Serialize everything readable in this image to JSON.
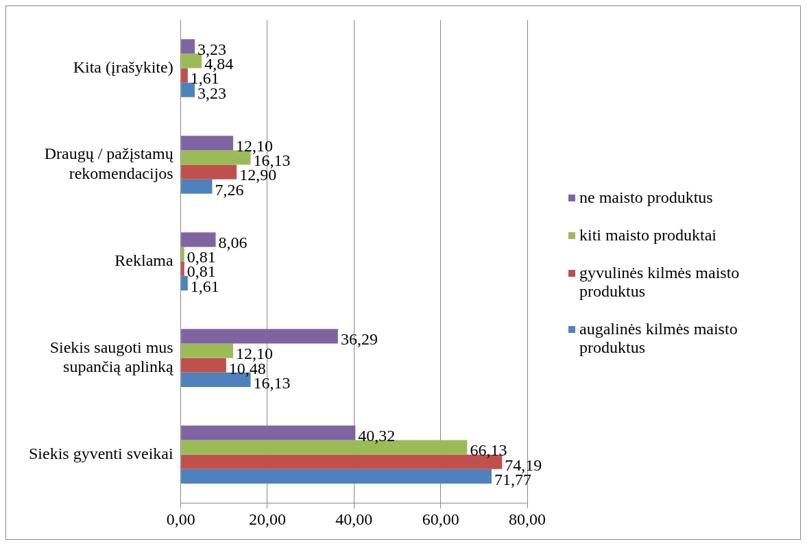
{
  "chart_data": {
    "type": "bar",
    "orientation": "horizontal",
    "categories": [
      "Kita (įrašykite)",
      "Draugų / pažįstamų rekomendacijos",
      "Reklama",
      "Siekis saugoti mus supančią aplinką",
      "Siekis gyventi sveikai"
    ],
    "series": [
      {
        "name": "ne maisto produktus",
        "color": "#8064a2",
        "values": [
          3.23,
          12.1,
          8.06,
          36.29,
          40.32
        ],
        "value_labels": [
          "3,23",
          "12,10",
          "8,06",
          "36,29",
          "40,32"
        ]
      },
      {
        "name": "kiti maisto produktai",
        "color": "#9bbb59",
        "values": [
          4.84,
          16.13,
          0.81,
          12.1,
          66.13
        ],
        "value_labels": [
          "4,84",
          "16,13",
          "0,81",
          "12,10",
          "66,13"
        ]
      },
      {
        "name": "gyvulinės kilmės maisto produktus",
        "color": "#c0504d",
        "values": [
          1.61,
          12.9,
          0.81,
          10.48,
          74.19
        ],
        "value_labels": [
          "1,61",
          "12,90",
          "0,81",
          "10,48",
          "74,19"
        ]
      },
      {
        "name": "augalinės kilmės maisto produktus",
        "color": "#4f81bd",
        "values": [
          3.23,
          7.26,
          1.61,
          16.13,
          71.77
        ],
        "value_labels": [
          "3,23",
          "7,26",
          "1,61",
          "16,13",
          "71,77"
        ]
      }
    ],
    "xlim": [
      0,
      80
    ],
    "xticks": [
      {
        "value": 0,
        "label": "0,00"
      },
      {
        "value": 20,
        "label": "20,00"
      },
      {
        "value": 40,
        "label": "40,00"
      },
      {
        "value": 60,
        "label": "60,00"
      },
      {
        "value": 80,
        "label": "80,00"
      }
    ],
    "grid": "x",
    "legend": "right"
  }
}
